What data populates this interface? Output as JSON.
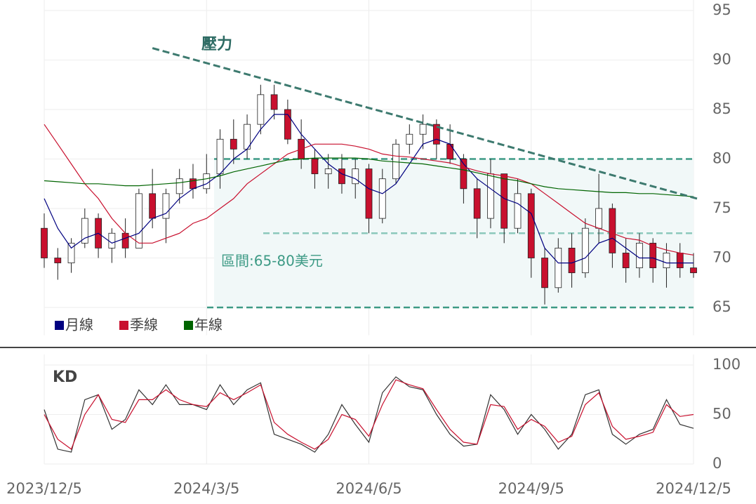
{
  "chart_data": [
    {
      "type": "candlestick",
      "open": [
        73,
        70,
        69.5,
        71.5,
        74,
        71,
        72.5,
        71,
        76.5,
        74,
        76.5,
        78,
        77,
        78.5,
        82,
        81,
        83.5,
        86.5,
        85,
        82,
        80,
        78.5,
        79,
        77.5,
        79,
        74,
        78,
        81.5,
        82.5,
        83.5,
        81.5,
        80,
        77,
        74,
        78.5,
        73,
        76.5,
        70,
        67,
        71,
        68.5,
        73,
        75,
        70.5,
        69,
        71.5,
        69,
        70.5,
        69
      ],
      "high": [
        74.5,
        71,
        72,
        75,
        74.5,
        73,
        74,
        77,
        79,
        77,
        79,
        79.5,
        80.5,
        83,
        84,
        84.5,
        87.5,
        87.5,
        86,
        84,
        81,
        80.5,
        80.5,
        80,
        79.5,
        79,
        82,
        83.5,
        84.5,
        84,
        83.5,
        80.5,
        78,
        80,
        78.5,
        78,
        77,
        71,
        72,
        72.5,
        74,
        78.5,
        75.5,
        72,
        72.5,
        72,
        71.5,
        71.5,
        70.5
      ],
      "low": [
        69,
        67.8,
        68.5,
        71,
        70,
        69.5,
        70,
        71,
        73,
        71.5,
        75.5,
        76,
        76.5,
        77,
        79.5,
        80,
        82.5,
        84,
        81.5,
        79,
        77,
        77,
        76.5,
        76,
        72.5,
        73.5,
        77.5,
        80.5,
        81,
        80,
        79.5,
        75.5,
        72,
        73,
        71.5,
        72.5,
        68,
        65.3,
        66.5,
        67,
        68,
        71.5,
        69,
        67.5,
        68,
        67.5,
        67,
        68,
        68
      ],
      "close": [
        70,
        69.5,
        71.5,
        74,
        71,
        72.5,
        71,
        76.5,
        74,
        76.5,
        78,
        77,
        78.5,
        82,
        81,
        83.5,
        86.5,
        85,
        82,
        80,
        78.5,
        79,
        77.5,
        79,
        74,
        78,
        81.5,
        82.5,
        83.5,
        81.5,
        80,
        77,
        74,
        78.5,
        73,
        76.5,
        70,
        67,
        71,
        68.5,
        73,
        75,
        70.5,
        69,
        71.5,
        69,
        70.5,
        69,
        68.5
      ],
      "up_color": "#ffffff",
      "down_color": "#c8102e",
      "series": [
        {
          "name": "月線",
          "color": "#000080",
          "values": [
            76,
            73,
            71,
            72,
            72.5,
            71.5,
            72,
            72.5,
            74,
            74.5,
            76,
            77,
            77.5,
            78.5,
            80,
            81,
            83,
            84.5,
            84.5,
            82.5,
            81,
            79.5,
            78.5,
            78,
            77,
            76.5,
            77.5,
            79.5,
            81.5,
            82,
            81.5,
            79.5,
            78,
            77,
            76,
            75.5,
            74.5,
            71,
            69.5,
            69.5,
            70,
            71.5,
            72,
            71,
            70,
            70,
            69.5,
            69.5,
            69.5
          ]
        },
        {
          "name": "季線",
          "color": "#c8102e",
          "values": [
            83.5,
            81.5,
            79.5,
            77.5,
            76,
            74,
            72.5,
            71.5,
            71.5,
            72,
            72.5,
            73.5,
            74,
            75,
            76,
            77.5,
            78.5,
            79.5,
            80.5,
            81,
            81.5,
            81.5,
            81.5,
            81.3,
            81,
            80.5,
            80.3,
            80.2,
            80,
            79.8,
            79.6,
            79.2,
            78.8,
            78.5,
            78.3,
            78,
            77.5,
            76.5,
            75.5,
            74.5,
            73.5,
            73,
            72.5,
            72,
            71.8,
            71.2,
            70.8,
            70.5,
            70.3
          ]
        },
        {
          "name": "年線",
          "color": "#006400",
          "values": [
            77.8,
            77.7,
            77.6,
            77.5,
            77.5,
            77.4,
            77.3,
            77.3,
            77.4,
            77.5,
            77.6,
            77.8,
            78,
            78.3,
            78.7,
            79,
            79.3,
            79.6,
            79.9,
            80,
            80.1,
            80.1,
            80.1,
            80.1,
            80,
            79.8,
            79.7,
            79.6,
            79.5,
            79.3,
            79.1,
            78.9,
            78.6,
            78.3,
            78,
            77.8,
            77.5,
            77.2,
            77,
            76.9,
            76.8,
            76.7,
            76.6,
            76.6,
            76.5,
            76.5,
            76.4,
            76.3,
            76.2
          ]
        }
      ],
      "ylim": [
        62.2,
        95
      ],
      "yticks": [
        65,
        70,
        75,
        80,
        85,
        90,
        95
      ],
      "grid": true,
      "trendline": {
        "label": "壓力",
        "values": [
          91.2,
          76
        ]
      },
      "levels": [
        80,
        72.5,
        65
      ],
      "range_label": "區間:65-80美元"
    },
    {
      "type": "line",
      "title": "KD",
      "categories": [
        "2023/12/5",
        null,
        null,
        null,
        null,
        null,
        null,
        null,
        null,
        null,
        null,
        null,
        "2024/3/5",
        null,
        null,
        null,
        null,
        null,
        null,
        null,
        null,
        null,
        null,
        null,
        "2024/6/5",
        null,
        null,
        null,
        null,
        null,
        null,
        null,
        null,
        null,
        null,
        null,
        "2024/9/5",
        null,
        null,
        null,
        null,
        null,
        null,
        null,
        null,
        null,
        null,
        null,
        "2024/12/5"
      ],
      "series": [
        {
          "color": "#333333",
          "values": [
            55,
            15,
            12,
            65,
            70,
            35,
            45,
            75,
            60,
            80,
            60,
            60,
            55,
            80,
            60,
            75,
            82,
            30,
            25,
            20,
            12,
            30,
            60,
            40,
            22,
            72,
            88,
            78,
            75,
            50,
            30,
            18,
            20,
            70,
            55,
            30,
            50,
            35,
            15,
            30,
            70,
            75,
            30,
            20,
            30,
            35,
            65,
            40,
            36
          ]
        },
        {
          "color": "#c8102e",
          "values": [
            50,
            25,
            15,
            50,
            70,
            45,
            42,
            65,
            65,
            75,
            65,
            60,
            58,
            72,
            65,
            72,
            80,
            42,
            30,
            22,
            15,
            25,
            50,
            45,
            28,
            60,
            85,
            80,
            76,
            55,
            35,
            22,
            20,
            60,
            58,
            35,
            45,
            38,
            22,
            28,
            60,
            72,
            38,
            25,
            28,
            32,
            60,
            48,
            50
          ]
        }
      ],
      "ylim": [
        0,
        100
      ],
      "yticks": [
        0,
        50,
        100
      ],
      "grid": true
    }
  ]
}
